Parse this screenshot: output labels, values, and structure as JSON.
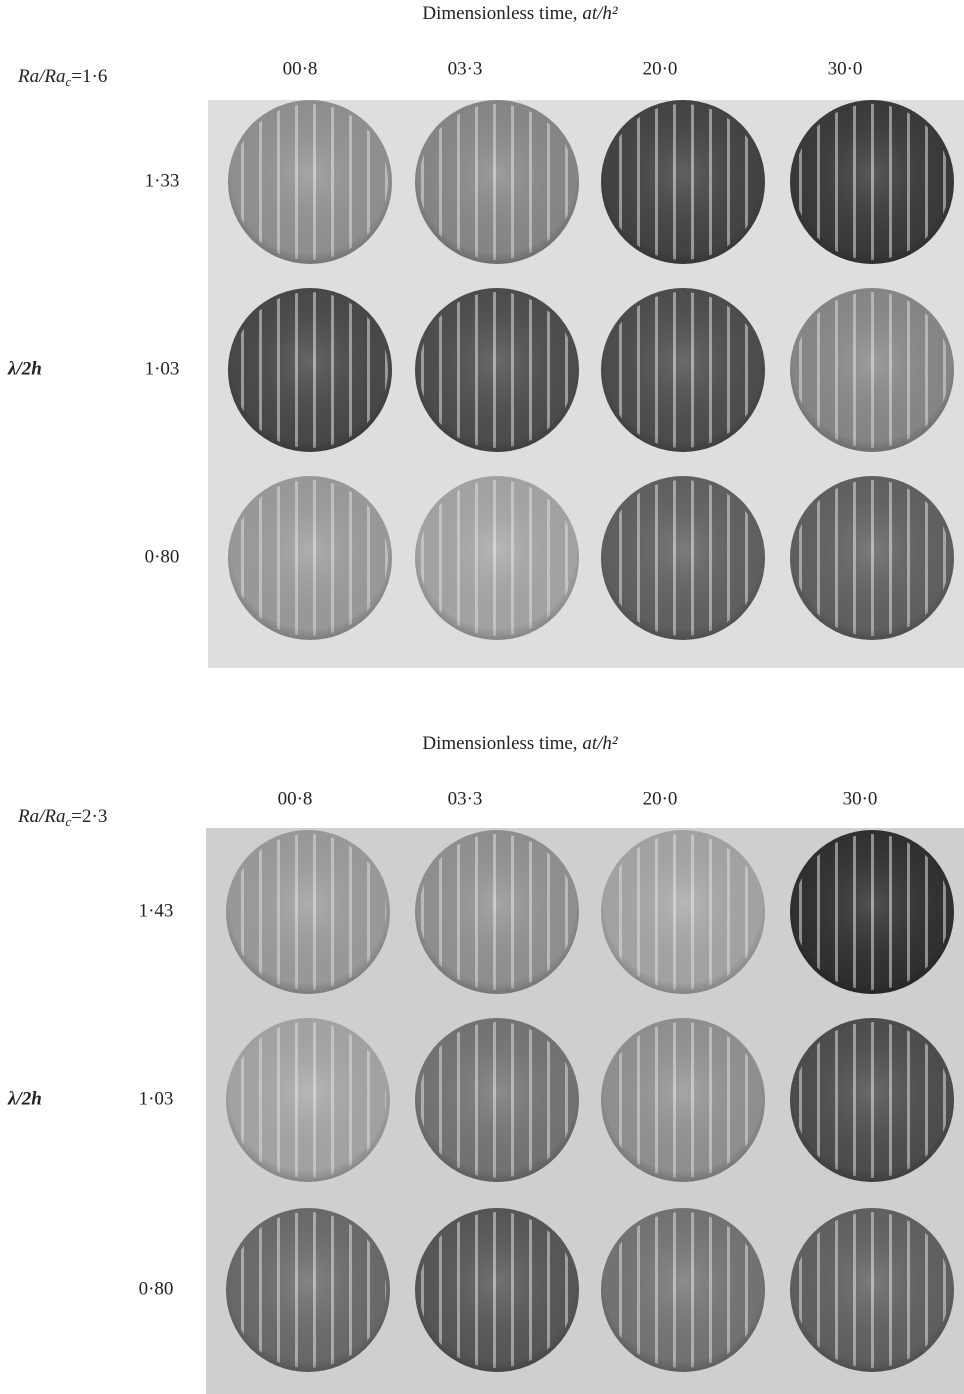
{
  "panels": [
    {
      "title": {
        "text": "Dimensionless time,",
        "italic": "at/h²"
      },
      "ratio_label": {
        "lhs": "Ra/Ra",
        "sub": "c",
        "rhs": "=1·6"
      },
      "row_axis_label": "λ/2h",
      "columns": [
        "00·8",
        "03·3",
        "20·0",
        "30·0"
      ],
      "rows": [
        "1·33",
        "1·03",
        "0·80"
      ]
    },
    {
      "title": {
        "text": "Dimensionless time,",
        "italic": "at/h²"
      },
      "ratio_label": {
        "lhs": "Ra/Ra",
        "sub": "c",
        "rhs": "=2·3"
      },
      "row_axis_label": "λ/2h",
      "columns": [
        "00·8",
        "03·3",
        "20·0",
        "30·0"
      ],
      "rows": [
        "1·43",
        "1·03",
        "0·80"
      ]
    }
  ]
}
